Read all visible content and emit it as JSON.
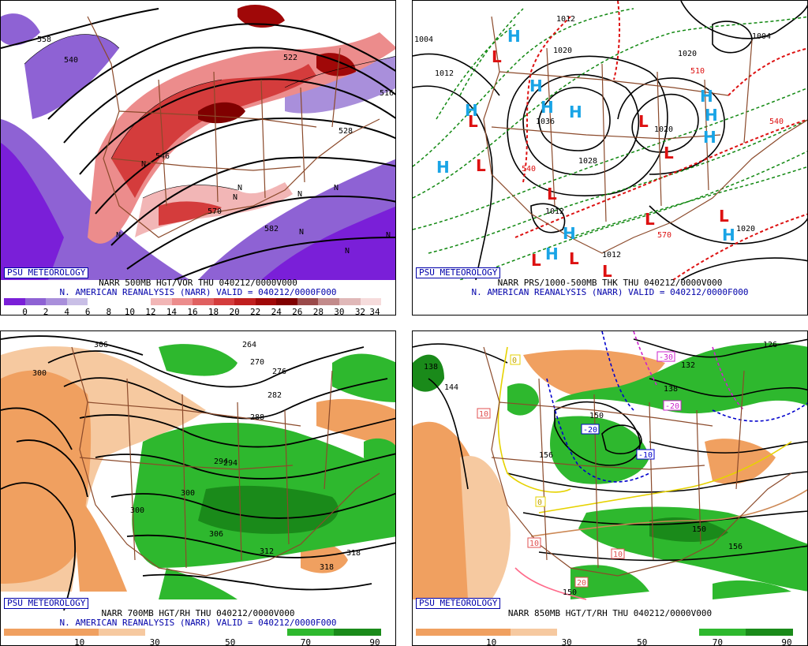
{
  "panels": {
    "tl": {
      "psu_label": "PSU METEOROLOGY",
      "caption_line1": "NARR 500MB HGT/VOR THU 040212/0000V000",
      "caption_line2": "N. AMERICAN REANALYSIS (NARR) VALID = 040212/0000F000",
      "colorbar_colors": [
        "#7a1fd8",
        "#8e62d4",
        "#a98fdb",
        "#c9bfe6",
        "#ffffff",
        "#ffffff",
        "#ffffff",
        "#f2b6b6",
        "#ec8c8c",
        "#e06060",
        "#d43c3c",
        "#c01f1f",
        "#a00808",
        "#800000",
        "#9a4a4a",
        "#c28a8a",
        "#e0b8b8",
        "#f6dcdc"
      ],
      "colorbar_ticks": [
        "0",
        "2",
        "4",
        "6",
        "8",
        "10",
        "12",
        "14",
        "16",
        "18",
        "20",
        "22",
        "24",
        "26",
        "28",
        "30",
        "32",
        "34"
      ],
      "contour_labels": [
        "558",
        "540",
        "522",
        "516",
        "528",
        "546",
        "570",
        "582"
      ],
      "n_markers": [
        "N",
        "N",
        "N",
        "N",
        "N",
        "N",
        "N",
        "N",
        "N"
      ]
    },
    "tr": {
      "psu_label": "PSU METEOROLOGY",
      "caption_line1": "NARR PRS/1000-500MB THK THU 040212/0000V000",
      "caption_line2": "N. AMERICAN REANALYSIS (NARR) VALID = 040212/0000F000",
      "pressure_labels": [
        "1004",
        "1012",
        "1012",
        "1020",
        "1036",
        "1028",
        "1020",
        "1004",
        "1020",
        "1012",
        "1012",
        "1020"
      ],
      "thickness_labels": [
        "510",
        "540",
        "540",
        "570"
      ],
      "highs": [
        "H",
        "H",
        "H",
        "H",
        "H",
        "H",
        "H",
        "H",
        "H",
        "H",
        "H",
        "H"
      ],
      "lows": [
        "L",
        "L",
        "L",
        "L",
        "L",
        "L",
        "L",
        "L",
        "L",
        "L",
        "L"
      ]
    },
    "bl": {
      "psu_label": "PSU METEOROLOGY",
      "caption_line1": "NARR 700MB HGT/RH THU 040212/0000V000",
      "caption_line2": "N. AMERICAN REANALYSIS (NARR) VALID = 040212/0000F000",
      "colorbar_colors": [
        "#f0a060",
        "#f0a060",
        "#f6c9a0",
        "#ffffff",
        "#ffffff",
        "#ffffff",
        "#2eb82e",
        "#1a8a1a"
      ],
      "colorbar_ticks": [
        "10",
        "30",
        "50",
        "70",
        "90"
      ],
      "contour_labels": [
        "306",
        "294",
        "300",
        "276",
        "282",
        "288",
        "294",
        "300",
        "300",
        "306",
        "312",
        "318",
        "318",
        "264",
        "270"
      ]
    },
    "br": {
      "psu_label": "PSU METEOROLOGY",
      "caption_line1": "NARR 850MB HGT/T/RH THU 040212/0000V000",
      "caption_line2": "",
      "colorbar_colors": [
        "#f0a060",
        "#f0a060",
        "#f6c9a0",
        "#ffffff",
        "#ffffff",
        "#ffffff",
        "#2eb82e",
        "#1a8a1a"
      ],
      "colorbar_ticks": [
        "10",
        "30",
        "50",
        "70",
        "90"
      ],
      "contour_labels": [
        "138",
        "144",
        "150",
        "156",
        "150",
        "126",
        "132",
        "138",
        "150",
        "156"
      ],
      "temp_labels": [
        "10",
        "10",
        "10",
        "20",
        "-20",
        "-20",
        "-10",
        "-30",
        "0",
        "0"
      ]
    }
  },
  "colors": {
    "frame": "#000000",
    "psu_blue": "#0000aa",
    "map_brown": "#8b4a2b",
    "high_blue": "#19a4e6",
    "low_red": "#dd1111",
    "thk_green": "#118811",
    "thk_red": "#dd1111"
  }
}
